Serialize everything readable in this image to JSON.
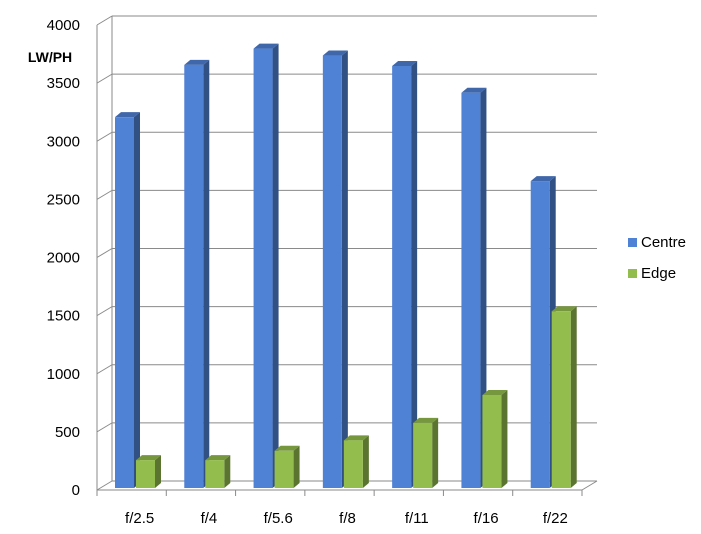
{
  "chart_data": {
    "type": "bar",
    "style": "3d-clustered-column",
    "title": "",
    "ylabel": "LW/PH",
    "xlabel": "",
    "categories": [
      "f/2.5",
      "f/4",
      "f/5.6",
      "f/8",
      "f/11",
      "f/16",
      "f/22"
    ],
    "series": [
      {
        "name": "Centre",
        "color": "#4f81d4",
        "values": [
          3190,
          3640,
          3780,
          3720,
          3630,
          3400,
          2640
        ]
      },
      {
        "name": "Edge",
        "color": "#93bd4d",
        "values": [
          240,
          240,
          320,
          410,
          560,
          800,
          1520
        ]
      }
    ],
    "ylim": [
      0,
      4000
    ],
    "yticks": [
      0,
      500,
      1000,
      1500,
      2000,
      2500,
      3000,
      3500,
      4000
    ],
    "grid": true,
    "legend_position": "right"
  }
}
